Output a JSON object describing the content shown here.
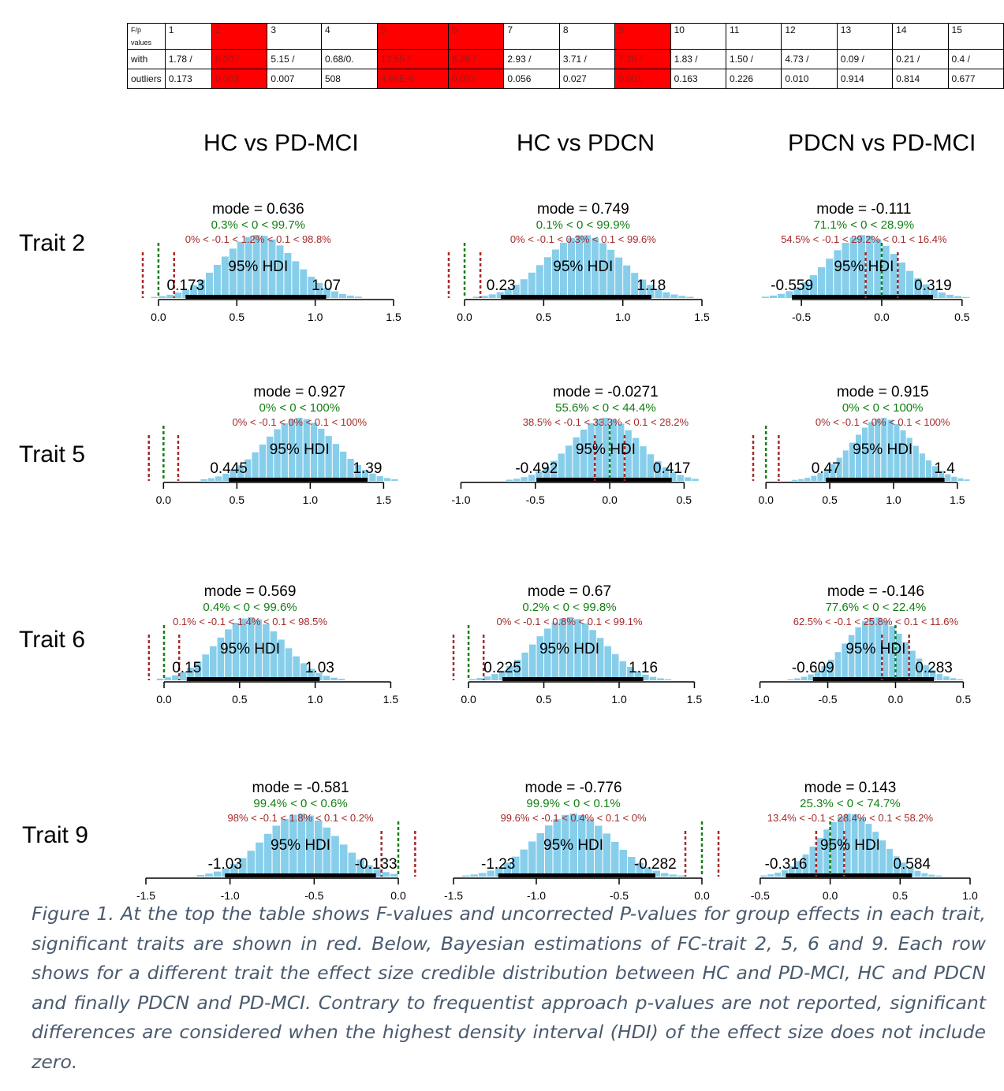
{
  "table": {
    "header_label": "F/p values",
    "row_label_1": "with",
    "row_label_2": "outliers",
    "columns": [
      {
        "trait": "1",
        "f": "1.78 /",
        "p": "0.173",
        "significant": false
      },
      {
        "trait": "2",
        "f": "6.00 /",
        "p": "0.003",
        "significant": true
      },
      {
        "trait": "3",
        "f": "5.15 /",
        "p": "0.007",
        "significant": false
      },
      {
        "trait": "4",
        "f": "0.68/0.",
        "p": "508",
        "significant": false
      },
      {
        "trait": "5",
        "f": "13.55 /",
        "p": "4.86E-6",
        "significant": true
      },
      {
        "trait": "6",
        "f": "6.26 /",
        "p": "0.002",
        "significant": true
      },
      {
        "trait": "7",
        "f": "2.93 /",
        "p": "0.056",
        "significant": false
      },
      {
        "trait": "8",
        "f": "3.71 /",
        "p": "0.027",
        "significant": false
      },
      {
        "trait": "9",
        "f": "7.28 /",
        "p": "0.001",
        "significant": true
      },
      {
        "trait": "10",
        "f": "1.83 /",
        "p": "0.163",
        "significant": false
      },
      {
        "trait": "11",
        "f": "1.50 /",
        "p": "0.226",
        "significant": false
      },
      {
        "trait": "12",
        "f": "4.73 /",
        "p": "0.010",
        "significant": false
      },
      {
        "trait": "13",
        "f": "0.09 /",
        "p": "0.914",
        "significant": false
      },
      {
        "trait": "14",
        "f": "0.21 /",
        "p": "0.814",
        "significant": false
      },
      {
        "trait": "15",
        "f": "0.4 /",
        "p": "0.677",
        "significant": false
      }
    ],
    "significant_color": "#ff0000"
  },
  "column_titles": [
    "HC vs PD-MCI",
    "HC vs PDCN",
    "PDCN vs PD-MCI"
  ],
  "row_labels": [
    "Trait 2",
    "Trait 5",
    "Trait 6",
    "Trait 9"
  ],
  "colors": {
    "histogram": "#87ceeb",
    "rope_text": "#a52a2a",
    "comp_text": "#137f13",
    "hdi_bar": "#000000"
  },
  "chart_data": [
    {
      "type": "bar",
      "row": "Trait 2",
      "column": "HC vs PD-MCI",
      "mode_label": "mode = 0.636",
      "mode": 0.636,
      "comp_label": "0.3% < 0 < 99.7%",
      "rope_label": "0% < -0.1 < 1.2% < 0.1 < 98.8%",
      "hdi_label": "95% HDI",
      "hdi": [
        0.173,
        1.07
      ],
      "hdi_low_label": "0.173",
      "hdi_high_label": "1.07",
      "sd": 0.23,
      "xlim": [
        -0.08,
        1.53
      ],
      "ticks": [
        "0.0",
        "0.5",
        "1.0",
        "1.5"
      ],
      "comp_value": 0,
      "rope": [
        -0.1,
        0.1
      ]
    },
    {
      "type": "bar",
      "row": "Trait 2",
      "column": "HC vs PDCN",
      "mode_label": "mode = 0.749",
      "mode": 0.749,
      "comp_label": "0.1% < 0 < 99.9%",
      "rope_label": "0% < -0.1 < 0.3% < 0.1 < 99.6%",
      "hdi_label": "95% HDI",
      "hdi": [
        0.23,
        1.18
      ],
      "hdi_low_label": "0.23",
      "hdi_high_label": "1.18",
      "sd": 0.24,
      "xlim": [
        -0.07,
        1.5
      ],
      "ticks": [
        "0.0",
        "0.5",
        "1.0",
        "1.5"
      ],
      "comp_value": 0,
      "rope": [
        -0.1,
        0.1
      ]
    },
    {
      "type": "bar",
      "row": "Trait 2",
      "column": "PDCN vs PD-MCI",
      "mode_label": "mode = -0.111",
      "mode": -0.111,
      "comp_label": "71.1% < 0 < 28.9%",
      "rope_label": "54.5% < -0.1 < 29.2% < 0.1 < 16.4%",
      "hdi_label": "95% HDI",
      "hdi": [
        -0.559,
        0.319
      ],
      "hdi_low_label": "-0.559",
      "hdi_high_label": "0.319",
      "sd": 0.22,
      "xlim": [
        -0.8,
        0.55
      ],
      "ticks": [
        "-0.5",
        "0.0",
        "0.5"
      ],
      "comp_value": 0,
      "rope": [
        -0.1,
        0.1
      ]
    },
    {
      "type": "bar",
      "row": "Trait 5",
      "column": "HC vs PD-MCI",
      "mode_label": "mode = 0.927",
      "mode": 0.927,
      "comp_label": "0% < 0 < 100%",
      "rope_label": "0% < -0.1 < 0% < 0.1 < 100%",
      "hdi_label": "95% HDI",
      "hdi": [
        0.445,
        1.39
      ],
      "hdi_low_label": "0.445",
      "hdi_high_label": "1.39",
      "sd": 0.24,
      "xlim": [
        -0.12,
        1.6
      ],
      "ticks": [
        "0.0",
        "0.5",
        "1.0",
        "1.5"
      ],
      "comp_value": 0,
      "rope": [
        -0.1,
        0.1
      ]
    },
    {
      "type": "bar",
      "row": "Trait 5",
      "column": "HC vs PDCN",
      "mode_label": "mode = -0.0271",
      "mode": -0.0271,
      "comp_label": "55.6% < 0 < 44.4%",
      "rope_label": "38.5% < -0.1 < 33.3% < 0.1 < 28.2%",
      "hdi_label": "95% HDI",
      "hdi": [
        -0.492,
        0.417
      ],
      "hdi_low_label": "-0.492",
      "hdi_high_label": "0.417",
      "sd": 0.23,
      "xlim": [
        -1.05,
        0.62
      ],
      "ticks": [
        "-1.0",
        "-0.5",
        "0.0",
        "0.5"
      ],
      "comp_value": 0,
      "rope": [
        -0.1,
        0.1
      ]
    },
    {
      "type": "bar",
      "row": "Trait 5",
      "column": "PDCN vs PD-MCI",
      "mode_label": "mode = 0.915",
      "mode": 0.915,
      "comp_label": "0% < 0 < 100%",
      "rope_label": "0% < -0.1 < 0% < 0.1 < 100%",
      "hdi_label": "95% HDI",
      "hdi": [
        0.47,
        1.4
      ],
      "hdi_low_label": "0.47",
      "hdi_high_label": "1.4",
      "sd": 0.24,
      "xlim": [
        -0.1,
        1.6
      ],
      "ticks": [
        "0.0",
        "0.5",
        "1.0",
        "1.5"
      ],
      "comp_value": 0,
      "rope": [
        -0.1,
        0.1
      ]
    },
    {
      "type": "bar",
      "row": "Trait 6",
      "column": "HC vs PD-MCI",
      "mode_label": "mode = 0.569",
      "mode": 0.569,
      "comp_label": "0.4% < 0 < 99.6%",
      "rope_label": "0.1% < -0.1 < 1.4% < 0.1 < 98.5%",
      "hdi_label": "95% HDI",
      "hdi": [
        0.15,
        1.03
      ],
      "hdi_low_label": "0.15",
      "hdi_high_label": "1.03",
      "sd": 0.22,
      "xlim": [
        -0.12,
        1.55
      ],
      "ticks": [
        "0.0",
        "0.5",
        "1.0",
        "1.5"
      ],
      "comp_value": 0,
      "rope": [
        -0.1,
        0.1
      ]
    },
    {
      "type": "bar",
      "row": "Trait 6",
      "column": "HC vs PDCN",
      "mode_label": "mode = 0.67",
      "mode": 0.67,
      "comp_label": "0.2% < 0 < 99.8%",
      "rope_label": "0% < -0.1 < 0.8% < 0.1 < 99.1%",
      "hdi_label": "95% HDI",
      "hdi": [
        0.225,
        1.16
      ],
      "hdi_low_label": "0.225",
      "hdi_high_label": "1.16",
      "sd": 0.23,
      "xlim": [
        -0.1,
        1.55
      ],
      "ticks": [
        "0.0",
        "0.5",
        "1.0",
        "1.5"
      ],
      "comp_value": 0,
      "rope": [
        -0.1,
        0.1
      ]
    },
    {
      "type": "bar",
      "row": "Trait 6",
      "column": "PDCN vs PD-MCI",
      "mode_label": "mode = -0.146",
      "mode": -0.146,
      "comp_label": "77.6% < 0 < 22.4%",
      "rope_label": "62.5% < -0.1 < 25.8% < 0.1 < 11.6%",
      "hdi_label": "95% HDI",
      "hdi": [
        -0.609,
        0.283
      ],
      "hdi_low_label": "-0.609",
      "hdi_high_label": "0.283",
      "sd": 0.22,
      "xlim": [
        -1.05,
        0.55
      ],
      "ticks": [
        "-1.0",
        "-0.5",
        "0.0",
        "0.5"
      ],
      "comp_value": 0,
      "rope": [
        -0.1,
        0.1
      ]
    },
    {
      "type": "bar",
      "row": "Trait 9",
      "column": "HC vs PD-MCI",
      "mode_label": "mode = -0.581",
      "mode": -0.581,
      "comp_label": "99.4% < 0 < 0.6%",
      "rope_label": "98% < -0.1 < 1.8% < 0.1 < 0.2%",
      "hdi_label": "95% HDI",
      "hdi": [
        -1.03,
        -0.133
      ],
      "hdi_low_label": "-1.03",
      "hdi_high_label": "-0.133",
      "sd": 0.22,
      "xlim": [
        -1.5,
        0.0
      ],
      "ticks": [
        "-1.5",
        "-1.0",
        "-0.5",
        "0.0"
      ],
      "comp_value": 0,
      "rope": [
        -0.1,
        0.1
      ]
    },
    {
      "type": "bar",
      "row": "Trait 9",
      "column": "HC vs PDCN",
      "mode_label": "mode = -0.776",
      "mode": -0.776,
      "comp_label": "99.9% < 0 < 0.1%",
      "rope_label": "99.6% < -0.1 < 0.4% < 0.1 < 0%",
      "hdi_label": "95% HDI",
      "hdi": [
        -1.23,
        -0.282
      ],
      "hdi_low_label": "-1.23",
      "hdi_high_label": "-0.282",
      "sd": 0.23,
      "xlim": [
        -1.5,
        0.0
      ],
      "ticks": [
        "-1.5",
        "-1.0",
        "-0.5",
        "0.0"
      ],
      "comp_value": 0,
      "rope": [
        -0.1,
        0.1
      ]
    },
    {
      "type": "bar",
      "row": "Trait 9",
      "column": "PDCN vs PD-MCI",
      "mode_label": "mode = 0.143",
      "mode": 0.143,
      "comp_label": "25.3% < 0 < 74.7%",
      "rope_label": "13.4% < -0.1 < 28.4% < 0.1 < 58.2%",
      "hdi_label": "95% HDI",
      "hdi": [
        -0.316,
        0.584
      ],
      "hdi_low_label": "-0.316",
      "hdi_high_label": "0.584",
      "sd": 0.22,
      "xlim": [
        -0.55,
        1.0
      ],
      "ticks": [
        "-0.5",
        "0.0",
        "0.5",
        "1.0"
      ],
      "comp_value": 0,
      "rope": [
        -0.1,
        0.1
      ]
    }
  ],
  "caption": "Figure 1. At the top the table shows F-values and uncorrected P-values for group effects in each trait, significant traits are shown in red. Below, Bayesian estimations of FC-trait 2, 5, 6 and 9. Each row shows for a different trait the effect size credible distribution between HC and PD-MCI, HC and PDCN and finally PDCN and PD-MCI. Contrary to frequentist approach p-values are not reported, significant differences are considered when the highest density interval (HDI) of the effect size does not include zero."
}
